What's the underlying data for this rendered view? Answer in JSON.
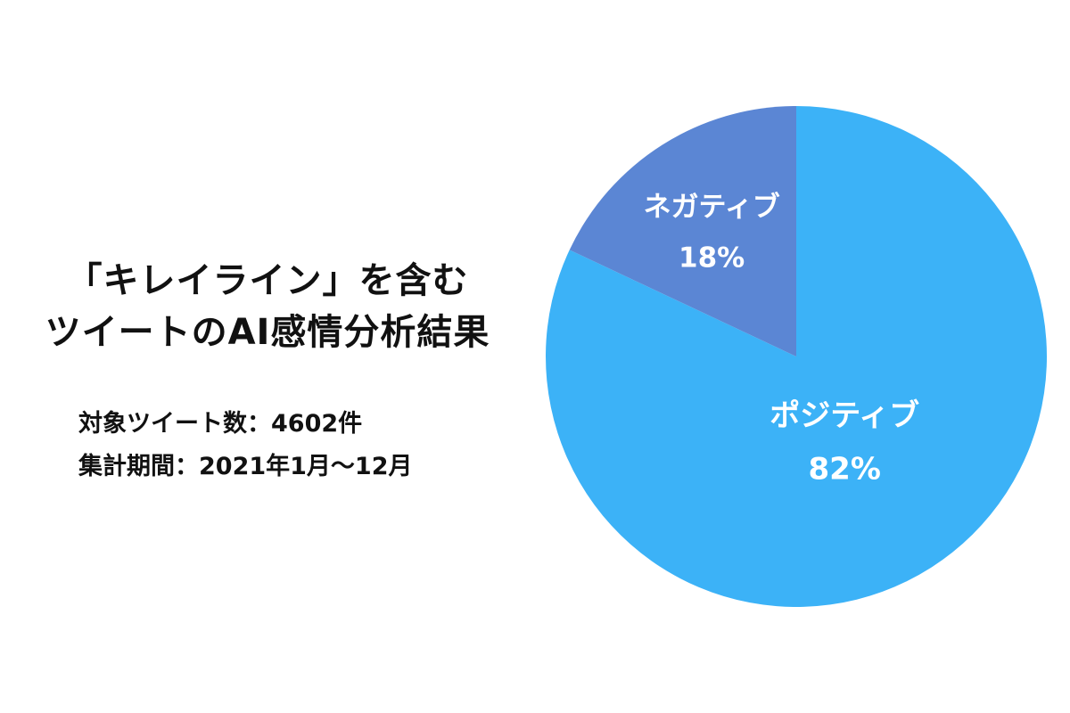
{
  "title": {
    "line1": "「キレイライン」を含む",
    "line2": "ツイートのAI感情分析結果"
  },
  "meta": {
    "count_line": "対象ツイート数：4602件",
    "period_line": "集計期間：2021年1月〜12月"
  },
  "chart_data": {
    "type": "pie",
    "slices": [
      {
        "label": "ポジティブ",
        "value": 82,
        "value_label": "82%",
        "color": "#3cb2f7"
      },
      {
        "label": "ネガティブ",
        "value": 18,
        "value_label": "18%",
        "color": "#5b86d4"
      }
    ],
    "start": "12 o'clock",
    "direction": "clockwise",
    "legend": "none"
  }
}
